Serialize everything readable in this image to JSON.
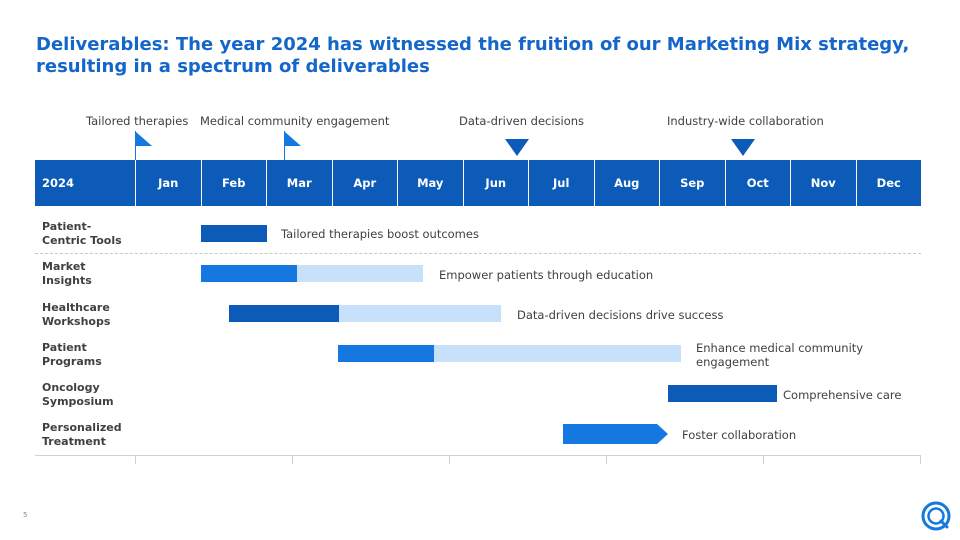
{
  "slide": {
    "title": "Deliverables: The year 2024 has witnessed the fruition of our Marketing Mix strategy, resulting in a spectrum of deliverables",
    "page_number": "5"
  },
  "milestones": [
    {
      "label": "Tailored therapies",
      "marker": "flag"
    },
    {
      "label": "Medical community engagement",
      "marker": "flag"
    },
    {
      "label": "Data-driven decisions",
      "marker": "triangle"
    },
    {
      "label": "Industry-wide collaboration",
      "marker": "triangle"
    }
  ],
  "timeline": {
    "year": "2024",
    "months": [
      "Jan",
      "Feb",
      "Mar",
      "Apr",
      "May",
      "Jun",
      "Jul",
      "Aug",
      "Sep",
      "Oct",
      "Nov",
      "Dec"
    ]
  },
  "rows": [
    {
      "label_line1": "Patient-",
      "label_line2": "Centric Tools",
      "bar_text": "Tailored therapies boost outcomes"
    },
    {
      "label_line1": "Market",
      "label_line2": "Insights",
      "bar_text": "Empower patients through education"
    },
    {
      "label_line1": "Healthcare",
      "label_line2": "Workshops",
      "bar_text": "Data-driven decisions drive success"
    },
    {
      "label_line1": "Patient",
      "label_line2": "Programs",
      "bar_text_line1": "Enhance medical community",
      "bar_text_line2": "engagement"
    },
    {
      "label_line1": "Oncology",
      "label_line2": "Symposium",
      "bar_text": "Comprehensive care"
    },
    {
      "label_line1": "Personalized",
      "label_line2": "Treatment",
      "bar_text": "Foster collaboration"
    }
  ],
  "colors": {
    "title": "#1466c8",
    "header": "#0c5bb8",
    "bar_dark": "#0c5bb8",
    "bar_mid": "#1478e0",
    "bar_light": "#c7e1fa"
  },
  "icons": {
    "milestone_flag": "flag-icon",
    "milestone_triangle": "triangle-down-icon",
    "logo": "company-logo-icon"
  }
}
